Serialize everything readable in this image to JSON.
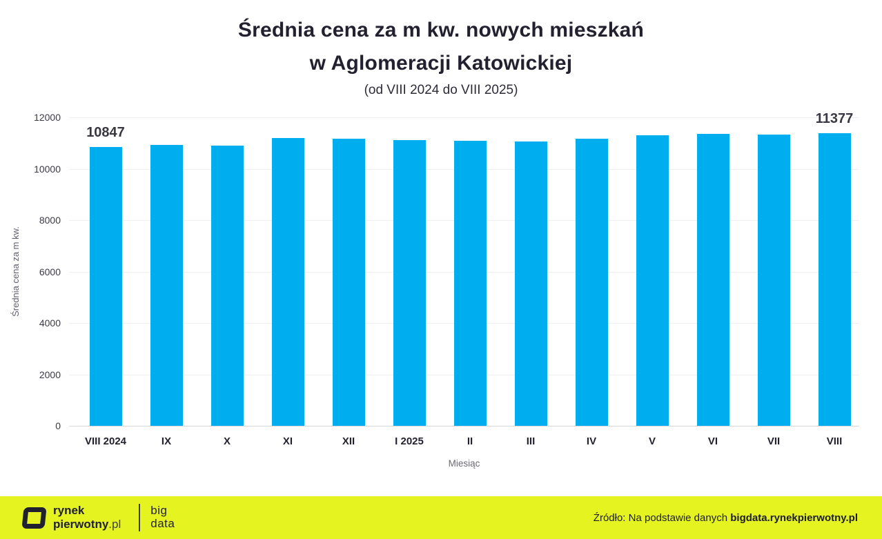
{
  "title": {
    "line1": "Średnia cena za m kw. nowych mieszkań",
    "line2": "w Aglomeracji Katowickiej",
    "subtitle": "(od VIII 2024 do VIII 2025)"
  },
  "chart_data": {
    "type": "bar",
    "categories": [
      "VIII 2024",
      "IX",
      "X",
      "XI",
      "XII",
      "I 2025",
      "II",
      "III",
      "IV",
      "V",
      "VI",
      "VII",
      "VIII"
    ],
    "values": [
      10847,
      10930,
      10910,
      11200,
      11170,
      11120,
      11090,
      11060,
      11180,
      11300,
      11360,
      11340,
      11377
    ],
    "data_labels": [
      {
        "index": 0,
        "text": "10847"
      },
      {
        "index": 12,
        "text": "11377"
      }
    ],
    "title": "Średnia cena za m kw. nowych mieszkań w Aglomeracji Katowickiej",
    "xlabel": "Miesiąc",
    "ylabel": "Średnia cena za m kw.",
    "ylim": [
      0,
      12000
    ],
    "yticks": [
      0,
      2000,
      4000,
      6000,
      8000,
      10000,
      12000
    ],
    "grid": true,
    "legend": "none",
    "bar_color": "#00AEEF"
  },
  "footer": {
    "background": "#E5F320",
    "logo": {
      "line1": "rynek",
      "line2_bold": "pierwotny",
      "line2_suffix": ".pl"
    },
    "bigdata": {
      "line1": "big",
      "line2": "data"
    },
    "source_prefix": "Źródło: Na podstawie danych ",
    "source_bold": "bigdata.rynekpierwotny.pl"
  }
}
